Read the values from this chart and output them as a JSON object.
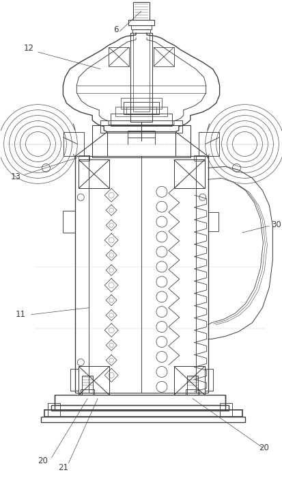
{
  "bg_color": "#ffffff",
  "line_color": "#3a3a3a",
  "lw": 0.65,
  "fig_width": 4.14,
  "fig_height": 7.19,
  "dpi": 100
}
